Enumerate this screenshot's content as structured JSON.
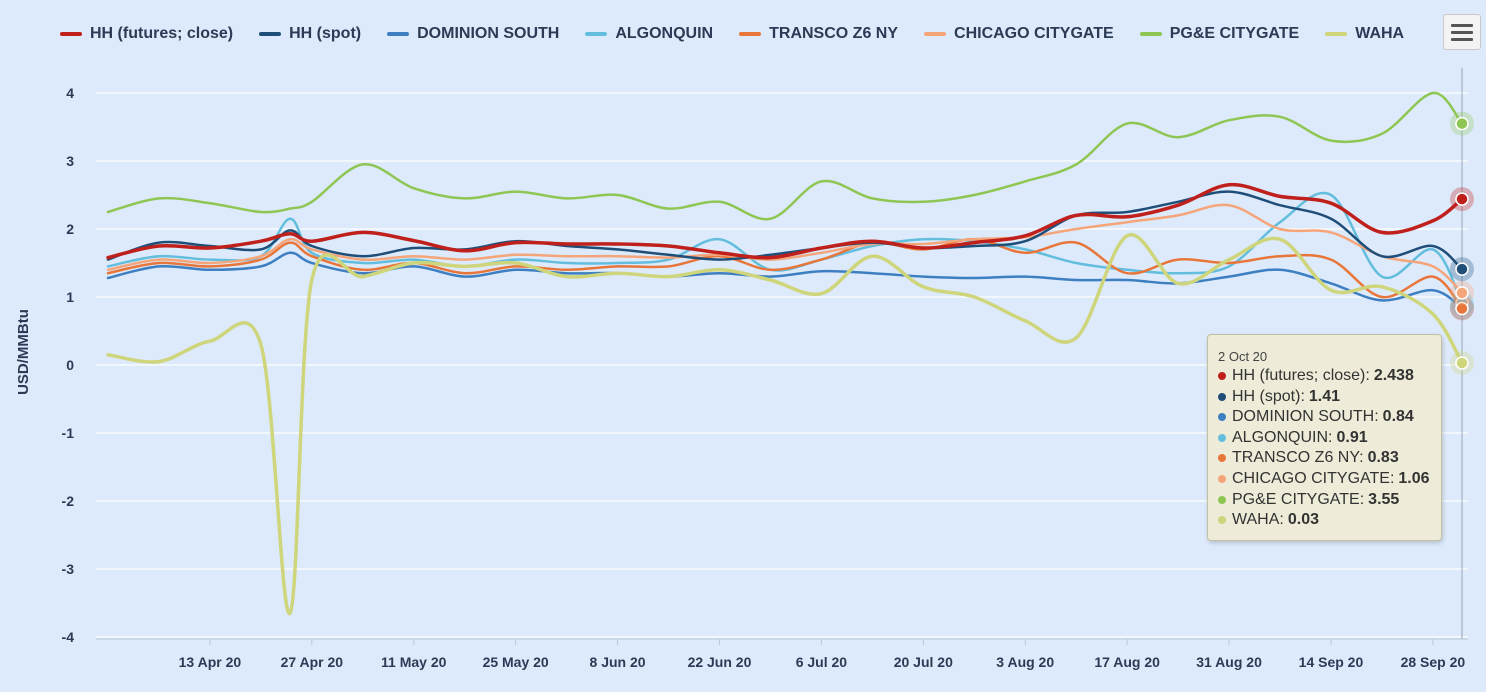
{
  "menu": {
    "icon": "hamburger-menu-icon"
  },
  "tooltip": {
    "date": "2 Oct 20",
    "rows": [
      {
        "label": "HH (futures; close):",
        "value": "2.438",
        "color": "#c0201b"
      },
      {
        "label": "HH (spot):",
        "value": "1.41",
        "color": "#1f4e79"
      },
      {
        "label": "DOMINION SOUTH:",
        "value": "0.84",
        "color": "#3d7fc1"
      },
      {
        "label": "ALGONQUIN:",
        "value": "0.91",
        "color": "#63bedd"
      },
      {
        "label": "TRANSCO Z6 NY:",
        "value": "0.83",
        "color": "#e8763a"
      },
      {
        "label": "CHICAGO CITYGATE:",
        "value": "1.06",
        "color": "#f5a57a"
      },
      {
        "label": "PG&E CITYGATE:",
        "value": "3.55",
        "color": "#8ec653"
      },
      {
        "label": "WAHA:",
        "value": "0.03",
        "color": "#cfd57a"
      }
    ]
  },
  "chart_data": {
    "type": "line",
    "ylabel": "USD/MMBtu",
    "ylim": [
      -4,
      4
    ],
    "yticks": [
      "4",
      "3",
      "2",
      "1",
      "0",
      "-1",
      "-2",
      "-3",
      "-4"
    ],
    "xrange": [
      "2020-03-30",
      "2020-10-02"
    ],
    "xticks": [
      {
        "date": "2020-04-13",
        "label": "13 Apr 20"
      },
      {
        "date": "2020-04-27",
        "label": "27 Apr 20"
      },
      {
        "date": "2020-05-11",
        "label": "11 May 20"
      },
      {
        "date": "2020-05-25",
        "label": "25 May 20"
      },
      {
        "date": "2020-06-08",
        "label": "8 Jun 20"
      },
      {
        "date": "2020-06-22",
        "label": "22 Jun 20"
      },
      {
        "date": "2020-07-06",
        "label": "6 Jul 20"
      },
      {
        "date": "2020-07-20",
        "label": "20 Jul 20"
      },
      {
        "date": "2020-08-03",
        "label": "3 Aug 20"
      },
      {
        "date": "2020-08-17",
        "label": "17 Aug 20"
      },
      {
        "date": "2020-08-31",
        "label": "31 Aug 20"
      },
      {
        "date": "2020-09-14",
        "label": "14 Sep 20"
      },
      {
        "date": "2020-09-28",
        "label": "28 Sep 20"
      }
    ],
    "grid": true,
    "legend_position": "top",
    "x": [
      "2020-03-30",
      "2020-04-06",
      "2020-04-13",
      "2020-04-20",
      "2020-04-24",
      "2020-04-27",
      "2020-05-04",
      "2020-05-11",
      "2020-05-18",
      "2020-05-25",
      "2020-06-01",
      "2020-06-08",
      "2020-06-15",
      "2020-06-22",
      "2020-06-29",
      "2020-07-06",
      "2020-07-13",
      "2020-07-20",
      "2020-07-27",
      "2020-08-03",
      "2020-08-10",
      "2020-08-17",
      "2020-08-24",
      "2020-08-31",
      "2020-09-07",
      "2020-09-14",
      "2020-09-21",
      "2020-09-28",
      "2020-10-02"
    ],
    "series": [
      {
        "name": "HH (futures; close)",
        "color": "#c0201b",
        "width": 3.5,
        "values": [
          1.58,
          1.75,
          1.72,
          1.82,
          1.93,
          1.82,
          1.95,
          1.83,
          1.68,
          1.8,
          1.78,
          1.78,
          1.75,
          1.65,
          1.58,
          1.72,
          1.82,
          1.72,
          1.8,
          1.9,
          2.2,
          2.18,
          2.35,
          2.65,
          2.48,
          2.38,
          1.95,
          2.12,
          2.44
        ]
      },
      {
        "name": "HH (spot)",
        "color": "#1f4e79",
        "width": 2.5,
        "values": [
          1.55,
          1.8,
          1.75,
          1.7,
          1.98,
          1.75,
          1.6,
          1.72,
          1.7,
          1.82,
          1.75,
          1.7,
          1.62,
          1.55,
          1.62,
          1.72,
          1.8,
          1.72,
          1.75,
          1.82,
          2.2,
          2.25,
          2.4,
          2.55,
          2.35,
          2.15,
          1.6,
          1.75,
          1.41
        ]
      },
      {
        "name": "DOMINION SOUTH",
        "color": "#3d7fc1",
        "width": 2.5,
        "values": [
          1.28,
          1.45,
          1.4,
          1.45,
          1.65,
          1.5,
          1.35,
          1.45,
          1.3,
          1.4,
          1.35,
          1.35,
          1.3,
          1.35,
          1.3,
          1.38,
          1.35,
          1.3,
          1.28,
          1.3,
          1.25,
          1.25,
          1.2,
          1.3,
          1.4,
          1.2,
          0.95,
          1.1,
          0.84
        ]
      },
      {
        "name": "ALGONQUIN",
        "color": "#63bedd",
        "width": 2.5,
        "values": [
          1.45,
          1.6,
          1.55,
          1.6,
          2.15,
          1.65,
          1.5,
          1.55,
          1.45,
          1.55,
          1.5,
          1.5,
          1.55,
          1.85,
          1.4,
          1.55,
          1.75,
          1.85,
          1.82,
          1.7,
          1.5,
          1.4,
          1.35,
          1.45,
          2.1,
          2.5,
          1.3,
          1.7,
          0.91
        ]
      },
      {
        "name": "TRANSCO Z6 NY",
        "color": "#e8763a",
        "width": 2.5,
        "values": [
          1.35,
          1.5,
          1.45,
          1.55,
          1.8,
          1.6,
          1.4,
          1.5,
          1.35,
          1.45,
          1.4,
          1.45,
          1.45,
          1.6,
          1.4,
          1.55,
          1.8,
          1.7,
          1.85,
          1.65,
          1.8,
          1.35,
          1.55,
          1.5,
          1.6,
          1.55,
          1.0,
          1.3,
          0.83
        ]
      },
      {
        "name": "CHICAGO CITYGATE",
        "color": "#f5a57a",
        "width": 2.5,
        "values": [
          1.4,
          1.55,
          1.5,
          1.6,
          1.85,
          1.7,
          1.55,
          1.6,
          1.55,
          1.62,
          1.6,
          1.6,
          1.58,
          1.62,
          1.55,
          1.65,
          1.78,
          1.78,
          1.85,
          1.88,
          2.0,
          2.1,
          2.2,
          2.35,
          2.0,
          1.95,
          1.6,
          1.45,
          1.06
        ]
      },
      {
        "name": "PG&E CITYGATE",
        "color": "#8ec653",
        "width": 2.5,
        "values": [
          2.25,
          2.45,
          2.38,
          2.25,
          2.3,
          2.4,
          2.95,
          2.6,
          2.45,
          2.55,
          2.45,
          2.5,
          2.3,
          2.4,
          2.15,
          2.7,
          2.45,
          2.4,
          2.5,
          2.7,
          2.95,
          3.55,
          3.35,
          3.6,
          3.65,
          3.3,
          3.4,
          4.0,
          3.55
        ]
      },
      {
        "name": "WAHA",
        "color": "#cfd57a",
        "width": 3.5,
        "values": [
          0.15,
          0.05,
          0.35,
          0.3,
          -3.65,
          1.25,
          1.3,
          1.5,
          1.45,
          1.5,
          1.3,
          1.35,
          1.3,
          1.4,
          1.25,
          1.05,
          1.6,
          1.15,
          1.0,
          0.65,
          0.4,
          1.9,
          1.2,
          1.55,
          1.85,
          1.1,
          1.15,
          0.75,
          0.03
        ]
      }
    ]
  }
}
